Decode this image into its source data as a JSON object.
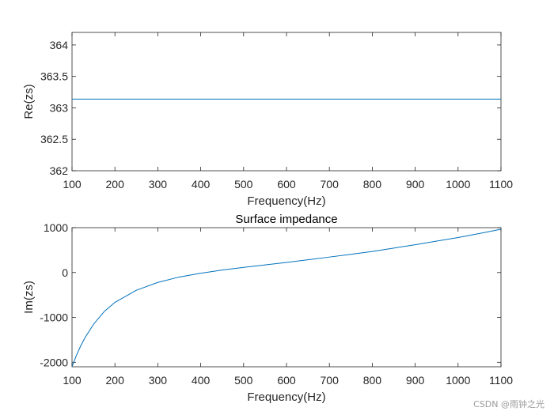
{
  "watermark": "CSDN @雨钟之光",
  "chart_data": [
    {
      "type": "line",
      "title": "",
      "xlabel": "Frequency(Hz)",
      "ylabel": "Re(zs)",
      "xlim": [
        100,
        1100
      ],
      "ylim": [
        362,
        364.2
      ],
      "xticks": [
        100,
        200,
        300,
        400,
        500,
        600,
        700,
        800,
        900,
        1000,
        1100
      ],
      "yticks": [
        362,
        362.5,
        363,
        363.5,
        364
      ],
      "line_color": "#0072BD",
      "series": [
        {
          "x": [
            100,
            1100
          ],
          "y": [
            363.14,
            363.14
          ]
        }
      ]
    },
    {
      "type": "line",
      "title": "Surface impedance",
      "xlabel": "Frequency(Hz)",
      "ylabel": "Im(zs)",
      "xlim": [
        100,
        1100
      ],
      "ylim": [
        -2100,
        1000
      ],
      "xticks": [
        100,
        200,
        300,
        400,
        500,
        600,
        700,
        800,
        900,
        1000,
        1100
      ],
      "yticks": [
        -2000,
        -1000,
        0,
        1000
      ],
      "line_color": "#0072BD",
      "series": [
        {
          "x": [
            100,
            110,
            120,
            130,
            150,
            175,
            200,
            250,
            300,
            350,
            400,
            450,
            500,
            550,
            600,
            650,
            700,
            750,
            800,
            850,
            900,
            950,
            1000,
            1050,
            1100
          ],
          "y": [
            -2100,
            -1850,
            -1640,
            -1455,
            -1155,
            -870,
            -665,
            -395,
            -220,
            -100,
            -15,
            55,
            115,
            170,
            225,
            285,
            345,
            405,
            470,
            545,
            620,
            700,
            780,
            870,
            965
          ]
        }
      ]
    }
  ]
}
